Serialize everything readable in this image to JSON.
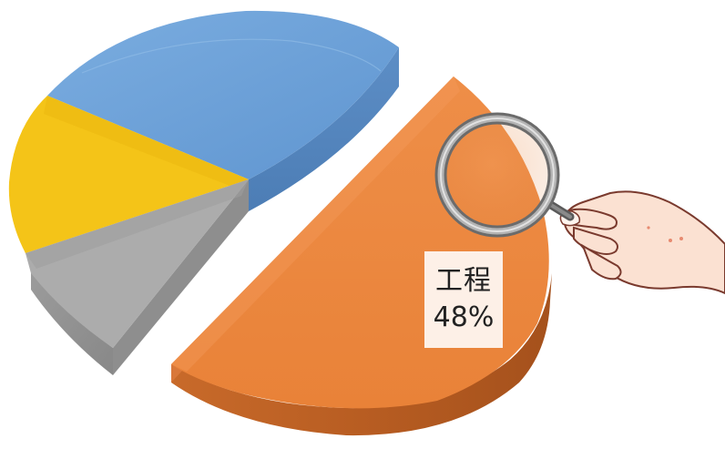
{
  "chart_data": {
    "type": "pie",
    "exploded_slice": "工程",
    "annotation": {
      "label": "工程",
      "value_text": "48%"
    },
    "slices": [
      {
        "label": "工程",
        "value": 48,
        "color": "#ED8B43"
      },
      {
        "label": "",
        "value": 29,
        "color": "#6FA2D8"
      },
      {
        "label": "",
        "value": 13,
        "color": "#F3C10E"
      },
      {
        "label": "",
        "value": 10,
        "color": "#A9A9A9"
      }
    ],
    "style": "3d-exploded",
    "magnifier": "magnifying-glass-icon"
  }
}
